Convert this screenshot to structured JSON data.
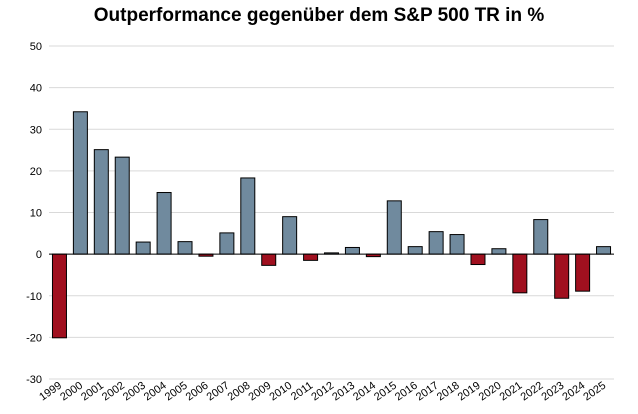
{
  "chart_data": {
    "type": "bar",
    "title": "Outperformance gegenüber dem S&P 500 TR in %",
    "xlabel": "",
    "ylabel": "",
    "categories": [
      "1999",
      "2000",
      "2001",
      "2002",
      "2003",
      "2004",
      "2005",
      "2006",
      "2007",
      "2008",
      "2009",
      "2010",
      "2011",
      "2012",
      "2013",
      "2014",
      "2015",
      "2016",
      "2017",
      "2018",
      "2019",
      "2020",
      "2021",
      "2022",
      "2023",
      "2024",
      "2025"
    ],
    "values": [
      -20.1,
      34.2,
      25.1,
      23.3,
      2.9,
      14.8,
      3.0,
      -0.5,
      5.1,
      18.3,
      -2.7,
      9.0,
      -1.5,
      0.3,
      1.6,
      -0.6,
      12.8,
      1.8,
      5.4,
      4.7,
      -2.5,
      1.3,
      -9.3,
      8.3,
      -10.6,
      -8.9,
      1.8
    ],
    "ylim": [
      -30,
      50
    ],
    "yticks": [
      -30,
      -20,
      -10,
      0,
      10,
      20,
      30,
      40,
      50
    ],
    "grid": true,
    "colors": {
      "positive": "#708a9e",
      "negative": "#a0101f",
      "bar_border": "#000000",
      "grid": "#d9d9d9",
      "zero_line": "#000000"
    }
  }
}
